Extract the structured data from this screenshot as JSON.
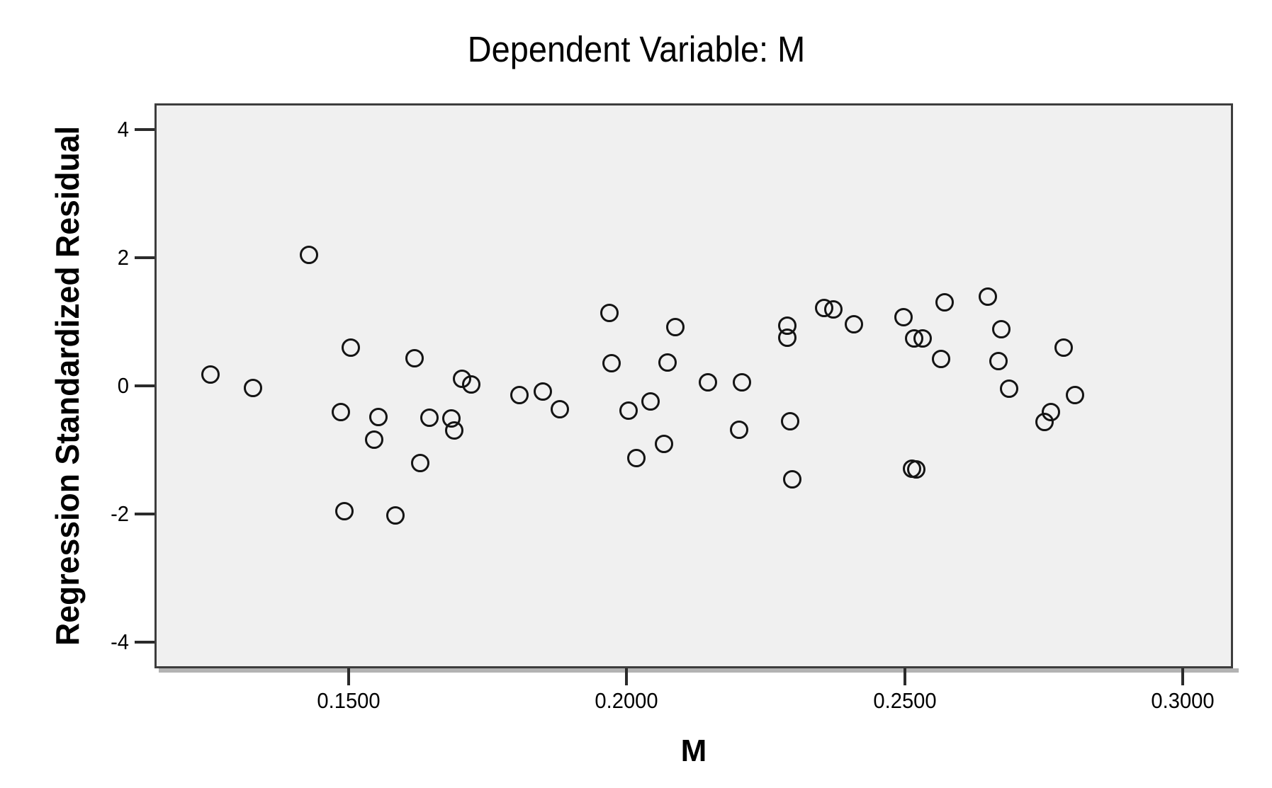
{
  "chart_data": {
    "type": "scatter",
    "title": "Dependent Variable: M",
    "xlabel": "M",
    "ylabel": "Regression Standardized Residual",
    "xlim": [
      0.1151,
      0.309
    ],
    "ylim": [
      -4.41,
      4.41
    ],
    "grid": false,
    "legend": "none",
    "marker": "open-circle",
    "x_ticks": [
      {
        "value": 0.15,
        "label": "0.1500"
      },
      {
        "value": 0.2,
        "label": "0.2000"
      },
      {
        "value": 0.25,
        "label": "0.2500"
      },
      {
        "value": 0.3,
        "label": "0.3000"
      }
    ],
    "y_ticks": [
      {
        "value": 4,
        "label": "4"
      },
      {
        "value": 2,
        "label": "2"
      },
      {
        "value": 0,
        "label": "0"
      },
      {
        "value": -2,
        "label": "-2"
      },
      {
        "value": -4,
        "label": "-4"
      }
    ],
    "points": [
      {
        "x": 0.1429,
        "y": 2.04
      },
      {
        "x": 0.1252,
        "y": 0.18
      },
      {
        "x": 0.1328,
        "y": -0.03
      },
      {
        "x": 0.1504,
        "y": 0.6
      },
      {
        "x": 0.1618,
        "y": 0.43
      },
      {
        "x": 0.1486,
        "y": -0.41
      },
      {
        "x": 0.1553,
        "y": -0.49
      },
      {
        "x": 0.1645,
        "y": -0.5
      },
      {
        "x": 0.1546,
        "y": -0.84
      },
      {
        "x": 0.1629,
        "y": -1.2
      },
      {
        "x": 0.1492,
        "y": -1.96
      },
      {
        "x": 0.1584,
        "y": -2.02
      },
      {
        "x": 0.1704,
        "y": 0.11
      },
      {
        "x": 0.172,
        "y": 0.02
      },
      {
        "x": 0.1685,
        "y": -0.51
      },
      {
        "x": 0.169,
        "y": -0.7
      },
      {
        "x": 0.1807,
        "y": -0.14
      },
      {
        "x": 0.1849,
        "y": -0.09
      },
      {
        "x": 0.188,
        "y": -0.36
      },
      {
        "x": 0.1969,
        "y": 1.14
      },
      {
        "x": 0.1973,
        "y": 0.35
      },
      {
        "x": 0.2003,
        "y": -0.39
      },
      {
        "x": 0.2017,
        "y": -1.13
      },
      {
        "x": 0.2043,
        "y": -0.24
      },
      {
        "x": 0.2087,
        "y": 0.92
      },
      {
        "x": 0.2073,
        "y": 0.36
      },
      {
        "x": 0.2067,
        "y": -0.91
      },
      {
        "x": 0.2146,
        "y": 0.06
      },
      {
        "x": 0.2207,
        "y": 0.06
      },
      {
        "x": 0.2202,
        "y": -0.69
      },
      {
        "x": 0.2289,
        "y": 0.94
      },
      {
        "x": 0.2289,
        "y": 0.75
      },
      {
        "x": 0.2294,
        "y": -0.55
      },
      {
        "x": 0.2297,
        "y": -1.46
      },
      {
        "x": 0.2355,
        "y": 1.22
      },
      {
        "x": 0.2371,
        "y": 1.19
      },
      {
        "x": 0.2408,
        "y": 0.96
      },
      {
        "x": 0.2497,
        "y": 1.07
      },
      {
        "x": 0.2517,
        "y": 0.74
      },
      {
        "x": 0.2532,
        "y": 0.74
      },
      {
        "x": 0.2513,
        "y": -1.29
      },
      {
        "x": 0.252,
        "y": -1.3
      },
      {
        "x": 0.2572,
        "y": 1.3
      },
      {
        "x": 0.2565,
        "y": 0.42
      },
      {
        "x": 0.2649,
        "y": 1.39
      },
      {
        "x": 0.2673,
        "y": 0.88
      },
      {
        "x": 0.2668,
        "y": 0.39
      },
      {
        "x": 0.2687,
        "y": -0.04
      },
      {
        "x": 0.2785,
        "y": 0.6
      },
      {
        "x": 0.2806,
        "y": -0.14
      },
      {
        "x": 0.2763,
        "y": -0.41
      },
      {
        "x": 0.2751,
        "y": -0.56
      }
    ]
  },
  "colors": {
    "canvas_background": "#ffffff",
    "plot_background": "#f0f0f0",
    "frame": "#3d3d3d",
    "frame_shadow": "#b3b3b3",
    "tick": "#2b2b2b",
    "marker_stroke": "#141414",
    "text": "#000000"
  }
}
